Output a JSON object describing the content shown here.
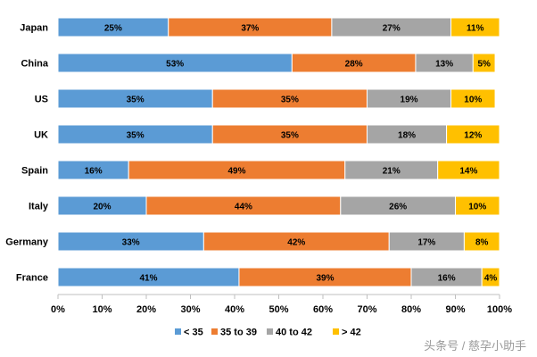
{
  "chart_data": {
    "type": "bar",
    "orientation": "horizontal",
    "stacked": true,
    "title": "",
    "xlabel": "",
    "ylabel": "",
    "xlim": [
      0,
      100
    ],
    "x_ticks": [
      "0%",
      "10%",
      "20%",
      "30%",
      "40%",
      "50%",
      "60%",
      "70%",
      "80%",
      "90%",
      "100%"
    ],
    "categories": [
      "Japan",
      "China",
      "US",
      "UK",
      "Spain",
      "Italy",
      "Germany",
      "France"
    ],
    "series": [
      {
        "name": "< 35",
        "color": "#5b9bd5",
        "values": [
          25,
          53,
          35,
          35,
          16,
          20,
          33,
          41
        ]
      },
      {
        "name": "35 to 39",
        "color": "#ed7d31",
        "values": [
          37,
          28,
          35,
          35,
          49,
          44,
          42,
          39
        ]
      },
      {
        "name": "40 to 42",
        "color": "#a5a5a5",
        "values": [
          27,
          13,
          19,
          18,
          21,
          26,
          17,
          16
        ]
      },
      {
        "name": "> 42",
        "color": "#ffc000",
        "values": [
          11,
          5,
          10,
          12,
          14,
          10,
          8,
          4
        ]
      }
    ],
    "legend_position": "bottom-center",
    "grid": false
  },
  "watermark": "头条号 / 慈孕小助手"
}
